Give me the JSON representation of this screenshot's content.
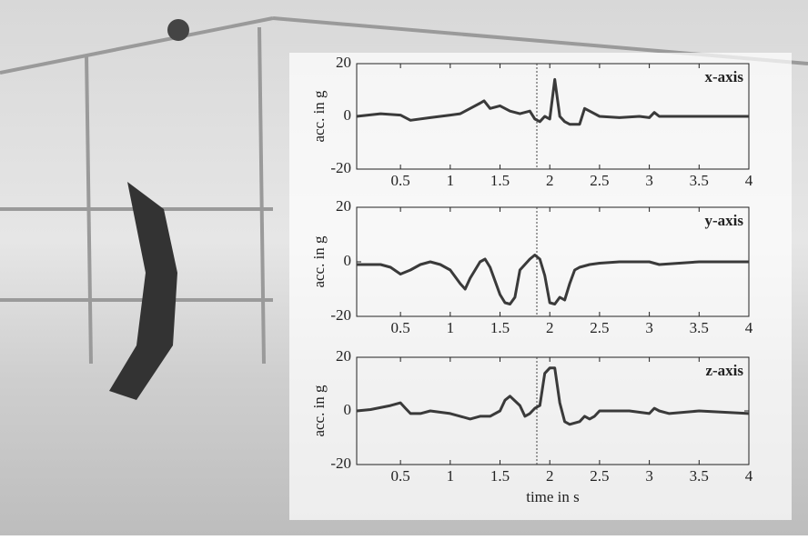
{
  "chart_data": [
    {
      "type": "line",
      "annotation": "x-axis",
      "ylabel": "acc. in g",
      "color": "#3a3a3a",
      "vline": 1.87,
      "xlim": [
        0.06,
        4
      ],
      "ylim": [
        -20,
        20
      ],
      "xticks": [
        0.5,
        1,
        1.5,
        2,
        2.5,
        3,
        3.5,
        4
      ],
      "yticks": [
        20,
        0,
        -20
      ],
      "x": [
        0.06,
        0.3,
        0.5,
        0.6,
        0.8,
        1.0,
        1.1,
        1.2,
        1.3,
        1.34,
        1.4,
        1.5,
        1.6,
        1.7,
        1.8,
        1.85,
        1.9,
        1.95,
        2.0,
        2.05,
        2.1,
        2.15,
        2.2,
        2.3,
        2.35,
        2.4,
        2.5,
        2.7,
        2.9,
        3.0,
        3.05,
        3.1,
        3.5,
        4
      ],
      "series": [
        {
          "values": [
            0,
            1,
            0.5,
            -1.5,
            -0.5,
            0.5,
            1,
            3,
            5,
            5.9,
            3,
            4,
            2,
            1,
            2,
            -1,
            -2,
            0,
            -1,
            14,
            0,
            -2,
            -3,
            -3,
            3,
            2,
            0,
            -0.5,
            0,
            -0.5,
            1.5,
            0,
            0,
            0
          ]
        }
      ]
    },
    {
      "type": "line",
      "annotation": "y-axis",
      "ylabel": "acc. in g",
      "color": "#3a3a3a",
      "vline": 1.87,
      "xlim": [
        0.06,
        4
      ],
      "ylim": [
        -20,
        20
      ],
      "xticks": [
        0.5,
        1,
        1.5,
        2,
        2.5,
        3,
        3.5,
        4
      ],
      "yticks": [
        20,
        0,
        -20
      ],
      "x": [
        0.06,
        0.3,
        0.4,
        0.5,
        0.6,
        0.7,
        0.8,
        0.9,
        1.0,
        1.1,
        1.15,
        1.2,
        1.3,
        1.35,
        1.4,
        1.5,
        1.55,
        1.6,
        1.65,
        1.7,
        1.8,
        1.85,
        1.9,
        1.95,
        2.0,
        2.05,
        2.1,
        2.15,
        2.2,
        2.25,
        2.3,
        2.35,
        2.4,
        2.5,
        2.7,
        2.8,
        3.0,
        3.1,
        3.3,
        3.5,
        4
      ],
      "series": [
        {
          "values": [
            -1,
            -1,
            -2,
            -4.5,
            -3,
            -1,
            0,
            -1,
            -3,
            -8,
            -10,
            -6,
            0,
            1,
            -2,
            -12,
            -15,
            -15.5,
            -13,
            -3,
            1,
            2.5,
            1,
            -5,
            -15,
            -15.5,
            -13,
            -14,
            -8,
            -3,
            -2,
            -1.5,
            -1,
            -0.5,
            0,
            0,
            0,
            -1,
            -0.5,
            0,
            0
          ]
        }
      ]
    },
    {
      "type": "line",
      "annotation": "z-axis",
      "ylabel": "acc. in g",
      "xlabel": "time in s",
      "color": "#3a3a3a",
      "vline": 1.87,
      "xlim": [
        0.06,
        4
      ],
      "ylim": [
        -20,
        20
      ],
      "xticks": [
        0.5,
        1,
        1.5,
        2,
        2.5,
        3,
        3.5,
        4
      ],
      "yticks": [
        20,
        0,
        -20
      ],
      "x": [
        0.06,
        0.2,
        0.4,
        0.5,
        0.55,
        0.6,
        0.7,
        0.8,
        1.0,
        1.1,
        1.2,
        1.3,
        1.4,
        1.5,
        1.55,
        1.6,
        1.7,
        1.75,
        1.8,
        1.85,
        1.9,
        1.95,
        2.0,
        2.05,
        2.1,
        2.15,
        2.2,
        2.3,
        2.35,
        2.4,
        2.45,
        2.5,
        2.6,
        2.8,
        3.0,
        3.05,
        3.1,
        3.2,
        3.5,
        4
      ],
      "series": [
        {
          "values": [
            0,
            0.5,
            2,
            3,
            1,
            -1,
            -1,
            0,
            -1,
            -2,
            -3,
            -2,
            -2,
            0,
            4,
            5.5,
            2,
            -2,
            -1,
            1,
            2,
            14,
            16,
            16,
            3,
            -4,
            -5,
            -4,
            -2,
            -3,
            -2,
            0,
            0,
            0,
            -1,
            1,
            0,
            -1,
            0,
            -1
          ]
        }
      ]
    }
  ]
}
